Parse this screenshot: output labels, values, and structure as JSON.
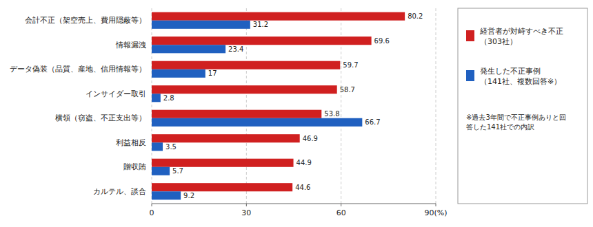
{
  "chart_data": {
    "type": "bar",
    "orientation": "horizontal",
    "categories": [
      "会計不正（架空売上、費用隠蔽等）",
      "情報漏洩",
      "データ偽装（品質、産地、信用情報等）",
      "インサイダー取引",
      "横領（窃盗、不正支出等）",
      "利益相反",
      "贈収賄",
      "カルテル、談合"
    ],
    "series": [
      {
        "name": "経営者が対峙すべき不正\n（303社）",
        "color": "#D02020",
        "values": [
          80.2,
          69.6,
          59.7,
          58.7,
          53.8,
          46.9,
          44.9,
          44.6
        ]
      },
      {
        "name": "発生した不正事例\n（141社、複数回答※）",
        "color": "#2060C0",
        "values": [
          31.2,
          23.4,
          17.0,
          2.8,
          66.7,
          3.5,
          5.7,
          9.2
        ]
      }
    ],
    "xlim": [
      0,
      90
    ],
    "xticks": [
      0,
      30,
      60,
      {
        "value": 90,
        "label": "90(%)"
      }
    ],
    "grid": true,
    "data_labels": true,
    "legend": "right",
    "annotations": [
      "※過去3年間で不正事例ありと回\n答した141社での内訳"
    ]
  }
}
